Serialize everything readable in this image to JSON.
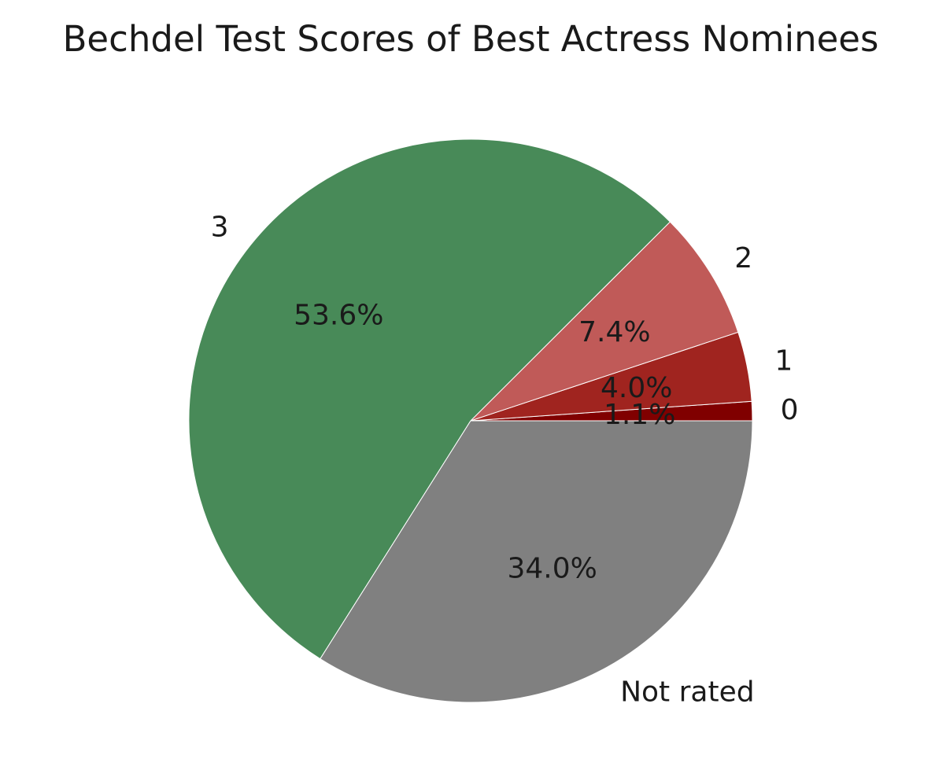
{
  "chart_data": {
    "type": "pie",
    "title": "Bechdel Test Scores of Best Actress Nominees",
    "start_angle_deg": 0,
    "direction": "counterclockwise",
    "slices": [
      {
        "label": "0",
        "value": 1.1,
        "pct_label": "1.1%",
        "color": "#800000"
      },
      {
        "label": "1",
        "value": 4.0,
        "pct_label": "4.0%",
        "color": "#A0241F"
      },
      {
        "label": "2",
        "value": 7.4,
        "pct_label": "7.4%",
        "color": "#C05A58"
      },
      {
        "label": "3",
        "value": 53.6,
        "pct_label": "53.6%",
        "color": "#488A58"
      },
      {
        "label": "Not rated",
        "value": 34.0,
        "pct_label": "34.0%",
        "color": "#808080"
      }
    ]
  }
}
